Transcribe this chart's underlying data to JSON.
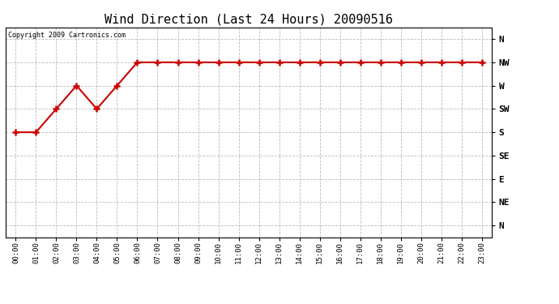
{
  "title": "Wind Direction (Last 24 Hours) 20090516",
  "copyright_text": "Copyright 2009 Cartronics.com",
  "line_color": "#cc0000",
  "marker": "+",
  "marker_size": 6,
  "marker_color": "#cc0000",
  "background_color": "#ffffff",
  "grid_color": "#bbbbbb",
  "x_labels": [
    "00:00",
    "01:00",
    "02:00",
    "03:00",
    "04:00",
    "05:00",
    "06:00",
    "07:00",
    "08:00",
    "09:00",
    "10:00",
    "11:00",
    "12:00",
    "13:00",
    "14:00",
    "15:00",
    "16:00",
    "17:00",
    "18:00",
    "19:00",
    "20:00",
    "21:00",
    "22:00",
    "23:00"
  ],
  "y_ticks": [
    0,
    1,
    2,
    3,
    4,
    5,
    6,
    7,
    8
  ],
  "y_labels": [
    "N",
    "NE",
    "E",
    "SE",
    "S",
    "SW",
    "W",
    "NW",
    "N"
  ],
  "y_values": [
    4,
    4,
    5,
    6,
    5,
    6,
    7,
    7,
    7,
    7,
    7,
    7,
    7,
    7,
    7,
    7,
    7,
    7,
    7,
    7,
    7,
    7,
    7,
    7
  ],
  "ylim": [
    -0.5,
    8.5
  ],
  "xlim": [
    -0.5,
    23.5
  ]
}
